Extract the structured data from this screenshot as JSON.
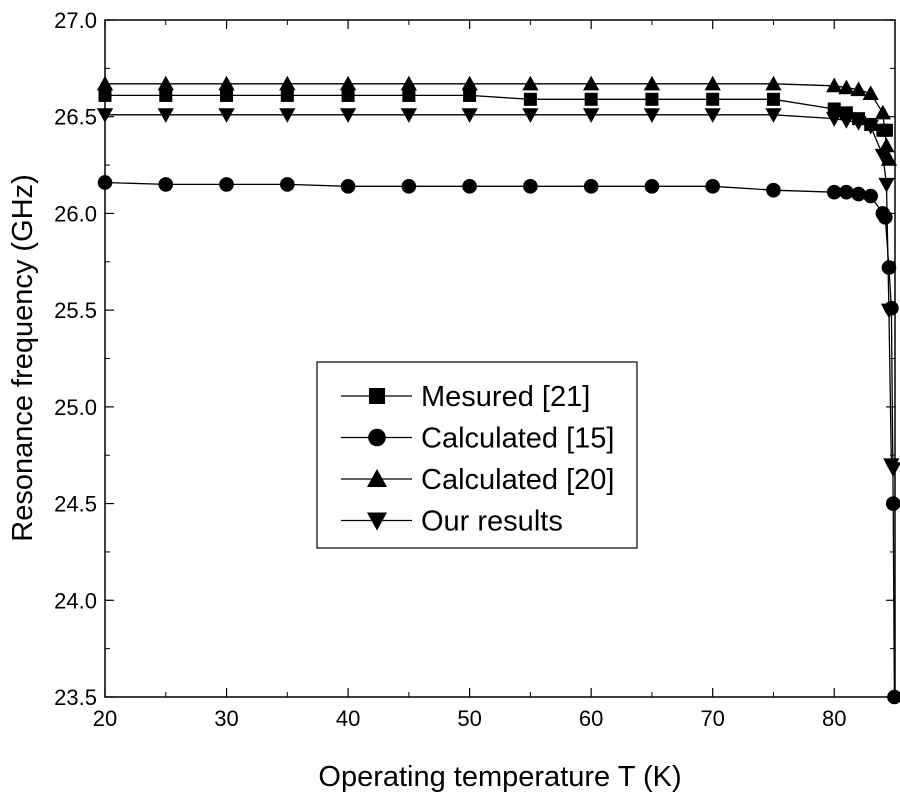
{
  "chart_data": {
    "type": "line",
    "title": "",
    "xlabel": "Operating temperature T (K)",
    "ylabel": "Resonance frequency (GHz)",
    "xlim": [
      20,
      85
    ],
    "ylim": [
      23.5,
      27.0
    ],
    "xticks": [
      20,
      30,
      40,
      50,
      60,
      70,
      80
    ],
    "xtick_labels": [
      "20",
      "30",
      "40",
      "50",
      "60",
      "70",
      "80"
    ],
    "yticks": [
      23.5,
      24.0,
      24.5,
      25.0,
      25.5,
      26.0,
      26.5,
      27.0
    ],
    "ytick_labels": [
      "23.5",
      "24.0",
      "24.5",
      "25.0",
      "25.5",
      "26.0",
      "26.5",
      "27.0"
    ],
    "grid": false,
    "legend_position": "center-left",
    "series": [
      {
        "name": "Mesured [21]",
        "marker": "square",
        "x": [
          20,
          25,
          30,
          35,
          40,
          45,
          50,
          55,
          60,
          65,
          70,
          75,
          80,
          81,
          82,
          83,
          84,
          84.3
        ],
        "y": [
          26.61,
          26.61,
          26.61,
          26.61,
          26.61,
          26.61,
          26.61,
          26.59,
          26.59,
          26.59,
          26.59,
          26.59,
          26.54,
          26.52,
          26.49,
          26.46,
          26.43,
          26.43
        ]
      },
      {
        "name": "Calculated [15]",
        "marker": "circle",
        "x": [
          20,
          25,
          30,
          35,
          40,
          45,
          50,
          55,
          60,
          65,
          70,
          75,
          80,
          81,
          82,
          83,
          84,
          84.2,
          84.5,
          84.7,
          84.85,
          84.95
        ],
        "y": [
          26.16,
          26.15,
          26.15,
          26.15,
          26.14,
          26.14,
          26.14,
          26.14,
          26.14,
          26.14,
          26.14,
          26.12,
          26.11,
          26.11,
          26.1,
          26.09,
          26.0,
          25.98,
          25.72,
          25.51,
          24.5,
          23.5
        ]
      },
      {
        "name": "Calculated [20]",
        "marker": "triangle-up",
        "x": [
          20,
          25,
          30,
          35,
          40,
          45,
          50,
          55,
          60,
          65,
          70,
          75,
          80,
          81,
          82,
          83,
          84,
          84.3,
          84.5
        ],
        "y": [
          26.67,
          26.67,
          26.67,
          26.67,
          26.67,
          26.67,
          26.67,
          26.67,
          26.67,
          26.67,
          26.67,
          26.67,
          26.66,
          26.65,
          26.64,
          26.62,
          26.52,
          26.35,
          26.28
        ]
      },
      {
        "name": "Our results",
        "marker": "triangle-down",
        "x": [
          20,
          25,
          30,
          35,
          40,
          45,
          50,
          55,
          60,
          65,
          70,
          75,
          80,
          81,
          82,
          83,
          84,
          84.3,
          84.5,
          84.7,
          84.85
        ],
        "y": [
          26.51,
          26.51,
          26.51,
          26.51,
          26.51,
          26.51,
          26.51,
          26.51,
          26.51,
          26.51,
          26.51,
          26.51,
          26.49,
          26.48,
          26.47,
          26.45,
          26.3,
          26.15,
          25.5,
          24.7,
          24.68
        ]
      }
    ]
  }
}
